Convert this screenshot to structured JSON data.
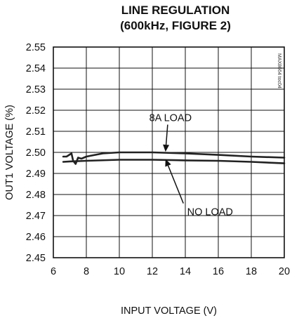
{
  "chart_data": {
    "type": "line",
    "title": "LINE REGULATION",
    "subtitle": "(600kHz, FIGURE 2)",
    "xlabel": "INPUT VOLTAGE (V)",
    "ylabel": "OUT1 VOLTAGE (%)",
    "xlim": [
      6,
      20
    ],
    "ylim": [
      2.45,
      2.55
    ],
    "x_ticks": [
      6,
      8,
      10,
      12,
      14,
      16,
      18,
      20
    ],
    "y_ticks": [
      2.55,
      2.54,
      2.53,
      2.52,
      2.51,
      2.5,
      2.49,
      2.48,
      2.47,
      2.46,
      2.45
    ],
    "x_tick_labels": [
      "6",
      "8",
      "10",
      "12",
      "14",
      "16",
      "18",
      "20"
    ],
    "y_tick_labels": [
      "2.55",
      "2.54",
      "2.53",
      "2.52",
      "2.51",
      "2.50",
      "2.49",
      "2.48",
      "2.47",
      "2.46",
      "2.45"
    ],
    "grid": true,
    "watermark": "MAX8664 toc04",
    "series": [
      {
        "name": "8A LOAD",
        "x": [
          6.6,
          6.8,
          7.0,
          7.1,
          7.2,
          7.35,
          7.5,
          7.7,
          8.0,
          9.0,
          10.0,
          12.0,
          14.0,
          16.0,
          18.0,
          20.0
        ],
        "y": [
          2.498,
          2.498,
          2.499,
          2.4995,
          2.496,
          2.4945,
          2.4975,
          2.497,
          2.498,
          2.4995,
          2.5,
          2.5,
          2.4995,
          2.4988,
          2.498,
          2.4975
        ]
      },
      {
        "name": "NO LOAD",
        "x": [
          6.6,
          7.0,
          8.0,
          10.0,
          12.0,
          14.0,
          16.0,
          18.0,
          20.0
        ],
        "y": [
          2.4955,
          2.4957,
          2.496,
          2.4965,
          2.4965,
          2.4962,
          2.496,
          2.4955,
          2.4948
        ]
      }
    ],
    "annotations": [
      {
        "text": "8A LOAD",
        "label_x": 13.1,
        "label_y": 2.5165,
        "target_x": 12.8,
        "target_y": 2.5003
      },
      {
        "text": "NO LOAD",
        "label_x": 15.5,
        "label_y": 2.4718,
        "target_x": 12.8,
        "target_y": 2.4968
      }
    ]
  }
}
